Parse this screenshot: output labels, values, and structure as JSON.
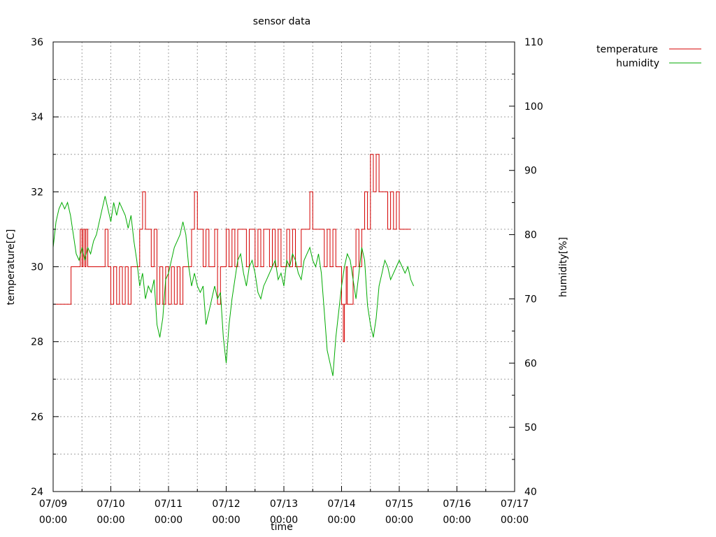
{
  "chart_data": {
    "type": "line",
    "title": "sensor data",
    "xlabel": "time",
    "ylabel": "temperature[C]",
    "y2label": "humidity[%]",
    "x_range": [
      "07/09 00:00",
      "07/17 00:00"
    ],
    "ylim": [
      24,
      36
    ],
    "y2lim": [
      40,
      110
    ],
    "grid": true,
    "legend_position": "top-right outside",
    "x_ticks": [
      {
        "date": "07/09",
        "time": "00:00"
      },
      {
        "date": "07/10",
        "time": "00:00"
      },
      {
        "date": "07/11",
        "time": "00:00"
      },
      {
        "date": "07/12",
        "time": "00:00"
      },
      {
        "date": "07/13",
        "time": "00:00"
      },
      {
        "date": "07/14",
        "time": "00:00"
      },
      {
        "date": "07/15",
        "time": "00:00"
      },
      {
        "date": "07/16",
        "time": "00:00"
      },
      {
        "date": "07/17",
        "time": "00:00"
      }
    ],
    "y_ticks": [
      "24",
      "26",
      "28",
      "30",
      "32",
      "34",
      "36"
    ],
    "y2_ticks": [
      "40",
      "50",
      "60",
      "70",
      "80",
      "90",
      "100",
      "110"
    ],
    "series": [
      {
        "name": "temperature",
        "axis": "y",
        "color": "#d40000",
        "x_day": [
          0,
          0.3,
          0.31,
          0.45,
          0.47,
          0.5,
          0.52,
          0.55,
          0.57,
          0.6,
          0.65,
          0.7,
          0.75,
          0.8,
          0.85,
          0.9,
          0.95,
          1.0,
          1.05,
          1.1,
          1.15,
          1.2,
          1.25,
          1.3,
          1.35,
          1.5,
          1.55,
          1.6,
          1.65,
          1.7,
          1.75,
          1.8,
          1.85,
          1.9,
          1.95,
          2.0,
          2.05,
          2.1,
          2.15,
          2.2,
          2.25,
          2.3,
          2.35,
          2.4,
          2.45,
          2.5,
          2.55,
          2.6,
          2.65,
          2.7,
          2.75,
          2.8,
          2.85,
          2.9,
          3.0,
          3.05,
          3.1,
          3.15,
          3.2,
          3.3,
          3.35,
          3.4,
          3.5,
          3.55,
          3.6,
          3.65,
          3.7,
          3.75,
          3.8,
          3.85,
          3.9,
          3.95,
          4.0,
          4.05,
          4.1,
          4.15,
          4.2,
          4.3,
          4.4,
          4.45,
          4.5,
          4.55,
          4.6,
          4.65,
          4.7,
          4.75,
          4.8,
          4.85,
          4.9,
          5.0,
          5.03,
          5.05,
          5.08,
          5.1,
          5.2,
          5.25,
          5.3,
          5.35,
          5.4,
          5.45,
          5.5,
          5.55,
          5.6,
          5.65,
          5.7,
          5.75,
          5.8,
          5.85,
          5.9,
          5.95,
          6.0,
          6.05,
          6.1,
          6.15,
          6.2
        ],
        "values": [
          29,
          29,
          30,
          30,
          31,
          30,
          31,
          30,
          31,
          30,
          30,
          30,
          30,
          30,
          30,
          31,
          30,
          29,
          30,
          29,
          30,
          29,
          30,
          29,
          30,
          31,
          32,
          31,
          31,
          30,
          31,
          29,
          30,
          29,
          30,
          29,
          30,
          29,
          30,
          29,
          30,
          30,
          30,
          31,
          32,
          31,
          31,
          30,
          31,
          30,
          30,
          31,
          29,
          30,
          31,
          30,
          31,
          30,
          31,
          31,
          30,
          31,
          30,
          31,
          30,
          31,
          31,
          30,
          31,
          30,
          31,
          30,
          30,
          31,
          30,
          31,
          30,
          31,
          31,
          32,
          31,
          31,
          31,
          31,
          30,
          31,
          30,
          31,
          30,
          29,
          28,
          29,
          30,
          29,
          30,
          31,
          30,
          31,
          32,
          31,
          33,
          32,
          33,
          32,
          32,
          32,
          31,
          32,
          31,
          32,
          31,
          31,
          31,
          31,
          31
        ]
      },
      {
        "name": "humidity",
        "axis": "y2",
        "color": "#00aa00",
        "x_day": [
          0,
          0.05,
          0.1,
          0.15,
          0.2,
          0.25,
          0.3,
          0.35,
          0.4,
          0.45,
          0.5,
          0.55,
          0.6,
          0.65,
          0.7,
          0.75,
          0.8,
          0.85,
          0.9,
          0.95,
          1.0,
          1.05,
          1.1,
          1.15,
          1.2,
          1.25,
          1.3,
          1.35,
          1.4,
          1.45,
          1.5,
          1.55,
          1.6,
          1.65,
          1.7,
          1.75,
          1.8,
          1.85,
          1.9,
          1.95,
          2.0,
          2.05,
          2.1,
          2.15,
          2.2,
          2.25,
          2.3,
          2.35,
          2.4,
          2.45,
          2.5,
          2.55,
          2.6,
          2.65,
          2.7,
          2.75,
          2.8,
          2.85,
          2.9,
          2.95,
          3.0,
          3.05,
          3.1,
          3.15,
          3.2,
          3.25,
          3.3,
          3.35,
          3.4,
          3.45,
          3.5,
          3.55,
          3.6,
          3.65,
          3.7,
          3.75,
          3.8,
          3.85,
          3.9,
          3.95,
          4.0,
          4.05,
          4.1,
          4.15,
          4.2,
          4.25,
          4.3,
          4.35,
          4.4,
          4.45,
          4.5,
          4.55,
          4.6,
          4.65,
          4.7,
          4.75,
          4.8,
          4.85,
          4.9,
          4.95,
          5.0,
          5.05,
          5.1,
          5.15,
          5.2,
          5.25,
          5.3,
          5.35,
          5.4,
          5.45,
          5.5,
          5.55,
          5.6,
          5.65,
          5.7,
          5.75,
          5.8,
          5.85,
          5.9,
          5.95,
          6.0,
          6.05,
          6.1,
          6.15,
          6.2,
          6.25
        ],
        "values": [
          78,
          82,
          84,
          85,
          84,
          85,
          83,
          80,
          77,
          76,
          78,
          76,
          78,
          77,
          79,
          80,
          82,
          84,
          86,
          84,
          82,
          85,
          83,
          85,
          84,
          83,
          81,
          83,
          79,
          76,
          72,
          74,
          70,
          72,
          71,
          73,
          66,
          64,
          67,
          73,
          74,
          76,
          78,
          79,
          80,
          82,
          80,
          75,
          72,
          74,
          72,
          71,
          72,
          66,
          68,
          70,
          72,
          70,
          71,
          64,
          60,
          66,
          70,
          73,
          76,
          77,
          74,
          72,
          75,
          76,
          74,
          71,
          70,
          72,
          73,
          74,
          75,
          76,
          73,
          74,
          72,
          76,
          75,
          77,
          76,
          74,
          73,
          76,
          77,
          78,
          76,
          75,
          77,
          74,
          68,
          62,
          60,
          58,
          64,
          68,
          72,
          75,
          77,
          76,
          73,
          70,
          74,
          78,
          76,
          69,
          66,
          64,
          67,
          72,
          74,
          76,
          75,
          73,
          74,
          75,
          76,
          75,
          74,
          75,
          73,
          72
        ]
      }
    ]
  }
}
